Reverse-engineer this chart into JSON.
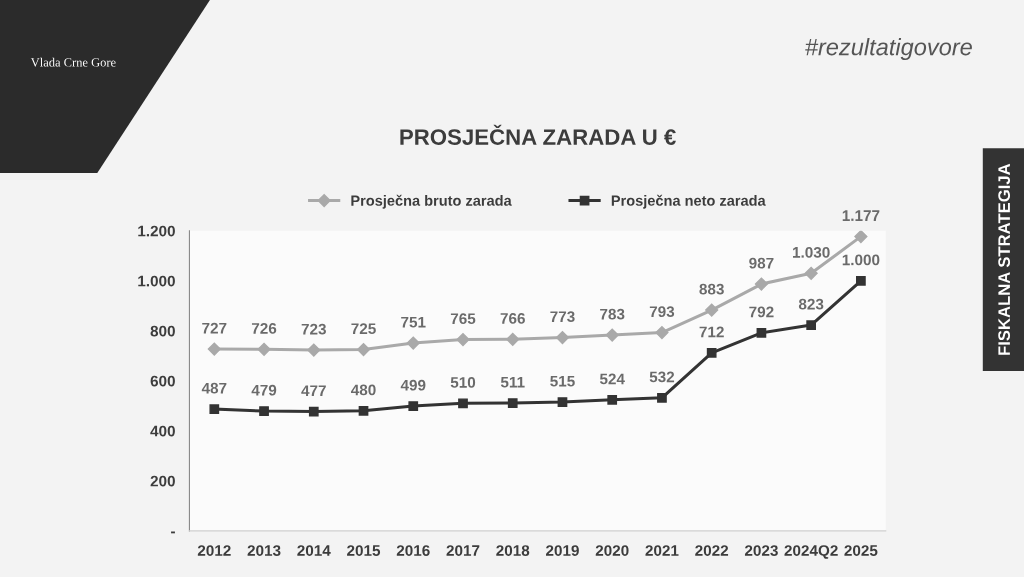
{
  "chart_data": {
    "type": "line",
    "title": "PROSJEČNA ZARADA U €",
    "categories": [
      "2012",
      "2013",
      "2014",
      "2015",
      "2016",
      "2017",
      "2018",
      "2019",
      "2020",
      "2021",
      "2022",
      "2023",
      "2024Q2",
      "2025"
    ],
    "series": [
      {
        "name": "Prosječna bruto zarada",
        "color": "#a9a9a9",
        "marker": "diamond",
        "values": [
          727,
          726,
          723,
          725,
          751,
          765,
          766,
          773,
          783,
          793,
          883,
          987,
          1030,
          1177
        ],
        "value_labels": [
          "727",
          "726",
          "723",
          "725",
          "751",
          "765",
          "766",
          "773",
          "783",
          "793",
          "883",
          "987",
          "1.030",
          "1.177"
        ]
      },
      {
        "name": "Prosječna neto zarada",
        "color": "#333333",
        "marker": "square",
        "values": [
          487,
          479,
          477,
          480,
          499,
          510,
          511,
          515,
          524,
          532,
          712,
          792,
          823,
          1000
        ],
        "value_labels": [
          "487",
          "479",
          "477",
          "480",
          "499",
          "510",
          "511",
          "515",
          "524",
          "532",
          "712",
          "792",
          "823",
          "1.000"
        ]
      }
    ],
    "ylim": [
      0,
      1200
    ],
    "yticks": [
      {
        "value": 0,
        "label": "-"
      },
      200,
      400,
      600,
      800,
      {
        "value": 1000,
        "label": "1.000"
      },
      {
        "value": 1200,
        "label": "1.200"
      }
    ],
    "grid": false,
    "legend": "top",
    "annotations": [
      "#rezultatigovore",
      "FISKALNA STRATEGIJA",
      "Vlada Crne Gore"
    ]
  }
}
